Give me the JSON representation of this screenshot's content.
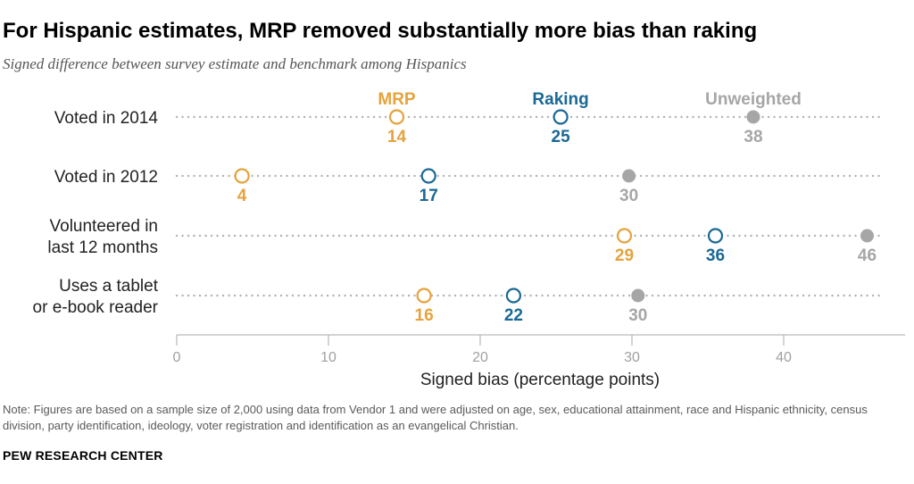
{
  "title": "For Hispanic estimates, MRP removed substantially more bias than raking",
  "subtitle": "Signed difference between survey estimate and benchmark among Hispanics",
  "note": "Note: Figures are based on a sample size of 2,000 using data from Vendor 1 and were adjusted on age, sex, educational attainment, race and Hispanic ethnicity, census division, party identification, ideology, voter registration and identification as an evangelical Christian.",
  "source": "PEW RESEARCH CENTER",
  "colors": {
    "mrp": "#e6a23c",
    "raking": "#1a6896",
    "unweighted": "#a6a6a6",
    "dots": "#b3b3b3",
    "axis": "#aaaaaa"
  },
  "chart_data": {
    "type": "scatter",
    "xlabel": "Signed bias (percentage points)",
    "xlim": [
      0,
      48
    ],
    "xticks": [
      0,
      10,
      20,
      30,
      40
    ],
    "categories": [
      {
        "lines": [
          "Voted in 2014"
        ]
      },
      {
        "lines": [
          "Voted in 2012"
        ]
      },
      {
        "lines": [
          "Volunteered in",
          "last 12 months"
        ]
      },
      {
        "lines": [
          "Uses a tablet",
          "or e-book reader"
        ]
      }
    ],
    "series": [
      {
        "name": "MRP",
        "key": "mrp",
        "marker": "open-circle",
        "values": [
          14,
          4,
          29,
          16
        ],
        "positions": [
          14.5,
          4.3,
          29.5,
          16.3
        ]
      },
      {
        "name": "Raking",
        "key": "raking",
        "marker": "open-circle",
        "values": [
          25,
          17,
          36,
          22
        ],
        "positions": [
          25.3,
          16.6,
          35.5,
          22.2
        ]
      },
      {
        "name": "Unweighted",
        "key": "unweighted",
        "marker": "filled-circle",
        "values": [
          38,
          30,
          46,
          30
        ],
        "positions": [
          38.0,
          29.8,
          45.5,
          30.4
        ]
      }
    ]
  }
}
